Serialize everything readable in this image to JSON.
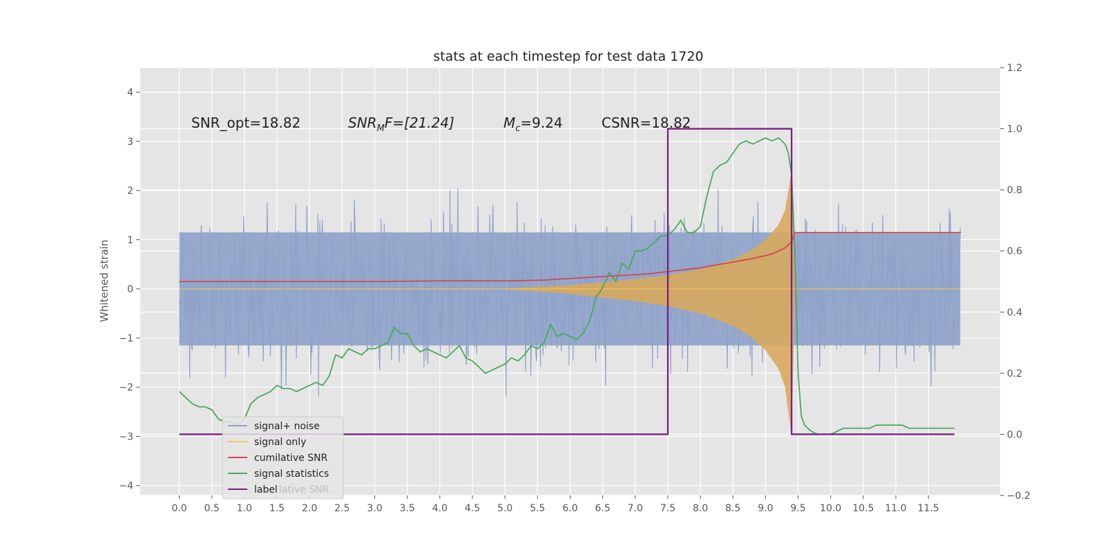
{
  "chart_data": {
    "type": "line",
    "title": "stats at each timestep for test data 1720",
    "ylabel": "Whitened strain",
    "xlabel": "",
    "xlim": [
      -0.6,
      12.6
    ],
    "ylim": [
      -4.2,
      4.5
    ],
    "y2lim": [
      -0.2,
      1.2
    ],
    "x_ticks": [
      "0.0",
      "0.5",
      "1.0",
      "1.5",
      "2.0",
      "2.5",
      "3.0",
      "3.5",
      "4.0",
      "4.5",
      "5.0",
      "5.5",
      "6.0",
      "6.5",
      "7.0",
      "7.5",
      "8.0",
      "8.5",
      "9.0",
      "9.5",
      "10.0",
      "10.5",
      "11.0",
      "11.5"
    ],
    "y_ticks": [
      -4,
      -3,
      -2,
      -1,
      0,
      1,
      2,
      3,
      4
    ],
    "y_tick_labels": [
      "−4",
      "−3",
      "−2",
      "−1",
      "0",
      "1",
      "2",
      "3",
      "4"
    ],
    "y2_ticks": [
      "−0.2",
      "0.0",
      "0.2",
      "0.4",
      "0.6",
      "0.8",
      "1.0",
      "1.2"
    ],
    "grid": true,
    "legend_placement": "lower-left",
    "annotations": [
      {
        "id": "snr-opt",
        "text": "SNR_opt=18.82"
      },
      {
        "id": "snr-mf",
        "text": "SNR",
        "sub": "M",
        "rest": "F=[21.24]"
      },
      {
        "id": "mc",
        "text": "M",
        "sub": "c",
        "rest": "=9.24"
      },
      {
        "id": "csnr",
        "text": "CSNR=18.82"
      }
    ],
    "legend": [
      {
        "name": "signal+ noise",
        "color": "#8fa3c9"
      },
      {
        "name": "signal only",
        "color": "#f2c55c"
      },
      {
        "name": "cumilative SNR",
        "color": "#d1484f"
      },
      {
        "name": "signal statistics",
        "color": "#4aa85c"
      },
      {
        "name": "label",
        "color": "#7a1783"
      }
    ],
    "legend_ghost_text": "lative SNR",
    "series": [
      {
        "name": "signal statistics",
        "axis": "right",
        "color": "#4aa85c",
        "x": [
          0.0,
          0.1,
          0.2,
          0.3,
          0.4,
          0.5,
          0.6,
          0.7,
          0.8,
          0.9,
          1.0,
          1.1,
          1.2,
          1.3,
          1.4,
          1.5,
          1.6,
          1.7,
          1.8,
          1.9,
          2.0,
          2.1,
          2.2,
          2.3,
          2.4,
          2.5,
          2.6,
          2.7,
          2.8,
          2.9,
          3.0,
          3.1,
          3.2,
          3.3,
          3.4,
          3.5,
          3.6,
          3.7,
          3.8,
          3.9,
          4.0,
          4.1,
          4.2,
          4.3,
          4.4,
          4.5,
          4.6,
          4.7,
          4.8,
          4.9,
          5.0,
          5.1,
          5.2,
          5.3,
          5.4,
          5.5,
          5.6,
          5.7,
          5.8,
          5.9,
          6.0,
          6.1,
          6.2,
          6.3,
          6.4,
          6.5,
          6.6,
          6.7,
          6.8,
          6.9,
          7.0,
          7.1,
          7.2,
          7.3,
          7.4,
          7.5,
          7.6,
          7.7,
          7.8,
          7.9,
          8.0,
          8.1,
          8.2,
          8.3,
          8.4,
          8.5,
          8.6,
          8.7,
          8.8,
          8.9,
          9.0,
          9.1,
          9.2,
          9.3,
          9.35,
          9.4,
          9.45,
          9.5,
          9.55,
          9.6,
          9.7,
          9.8,
          9.9,
          10.0,
          10.1,
          10.2,
          10.3,
          10.4,
          10.5,
          10.6,
          10.7,
          10.8,
          10.9,
          11.0,
          11.1,
          11.2,
          11.3,
          11.4,
          11.5,
          11.6,
          11.7,
          11.8,
          11.9
        ],
        "y": [
          0.14,
          0.12,
          0.1,
          0.09,
          0.09,
          0.08,
          0.05,
          0.04,
          0.04,
          0.03,
          0.05,
          0.1,
          0.12,
          0.13,
          0.14,
          0.16,
          0.15,
          0.15,
          0.14,
          0.15,
          0.16,
          0.17,
          0.16,
          0.19,
          0.26,
          0.25,
          0.28,
          0.27,
          0.26,
          0.28,
          0.28,
          0.29,
          0.3,
          0.35,
          0.33,
          0.33,
          0.29,
          0.27,
          0.28,
          0.27,
          0.26,
          0.25,
          0.27,
          0.29,
          0.25,
          0.24,
          0.22,
          0.2,
          0.21,
          0.22,
          0.23,
          0.25,
          0.24,
          0.26,
          0.29,
          0.28,
          0.3,
          0.36,
          0.32,
          0.33,
          0.32,
          0.31,
          0.33,
          0.37,
          0.45,
          0.48,
          0.53,
          0.5,
          0.56,
          0.54,
          0.6,
          0.6,
          0.61,
          0.63,
          0.65,
          0.65,
          0.67,
          0.7,
          0.66,
          0.66,
          0.68,
          0.78,
          0.86,
          0.88,
          0.89,
          0.92,
          0.95,
          0.96,
          0.95,
          0.96,
          0.97,
          0.96,
          0.97,
          0.95,
          0.92,
          0.85,
          0.6,
          0.2,
          0.06,
          0.03,
          0.01,
          0.0,
          0.0,
          0.0,
          0.01,
          0.02,
          0.02,
          0.02,
          0.02,
          0.02,
          0.03,
          0.03,
          0.03,
          0.03,
          0.03,
          0.02,
          0.02,
          0.02,
          0.02,
          0.02,
          0.02,
          0.02,
          0.02
        ]
      },
      {
        "name": "cumilative SNR",
        "axis": "right",
        "color": "#d1484f",
        "x": [
          0.0,
          1.0,
          2.0,
          3.0,
          4.0,
          5.0,
          5.3,
          5.6,
          6.0,
          6.4,
          6.8,
          7.2,
          7.6,
          8.0,
          8.4,
          8.8,
          9.1,
          9.3,
          9.4,
          9.45,
          9.5,
          10.0,
          11.0,
          12.0
        ],
        "y": [
          0.5,
          0.5,
          0.5,
          0.5,
          0.502,
          0.502,
          0.503,
          0.505,
          0.51,
          0.515,
          0.52,
          0.525,
          0.535,
          0.545,
          0.56,
          0.575,
          0.59,
          0.61,
          0.63,
          0.66,
          0.66,
          0.66,
          0.66,
          0.66
        ]
      },
      {
        "name": "label",
        "axis": "right",
        "color": "#7a1783",
        "x": [
          0.0,
          7.5,
          7.5,
          9.4,
          9.4,
          11.9
        ],
        "y": [
          0.0,
          0.0,
          1.0,
          1.0,
          0.0,
          0.0
        ]
      },
      {
        "name": "signal only",
        "axis": "left",
        "color": "#f2c55c",
        "envelope_x": [
          5.0,
          5.5,
          6.0,
          6.5,
          7.0,
          7.5,
          8.0,
          8.5,
          8.8,
          9.0,
          9.2,
          9.3,
          9.4,
          9.45
        ],
        "envelope_y": [
          0.01,
          0.04,
          0.08,
          0.14,
          0.2,
          0.28,
          0.4,
          0.6,
          0.8,
          1.0,
          1.3,
          1.6,
          2.4,
          0.0
        ]
      }
    ]
  }
}
